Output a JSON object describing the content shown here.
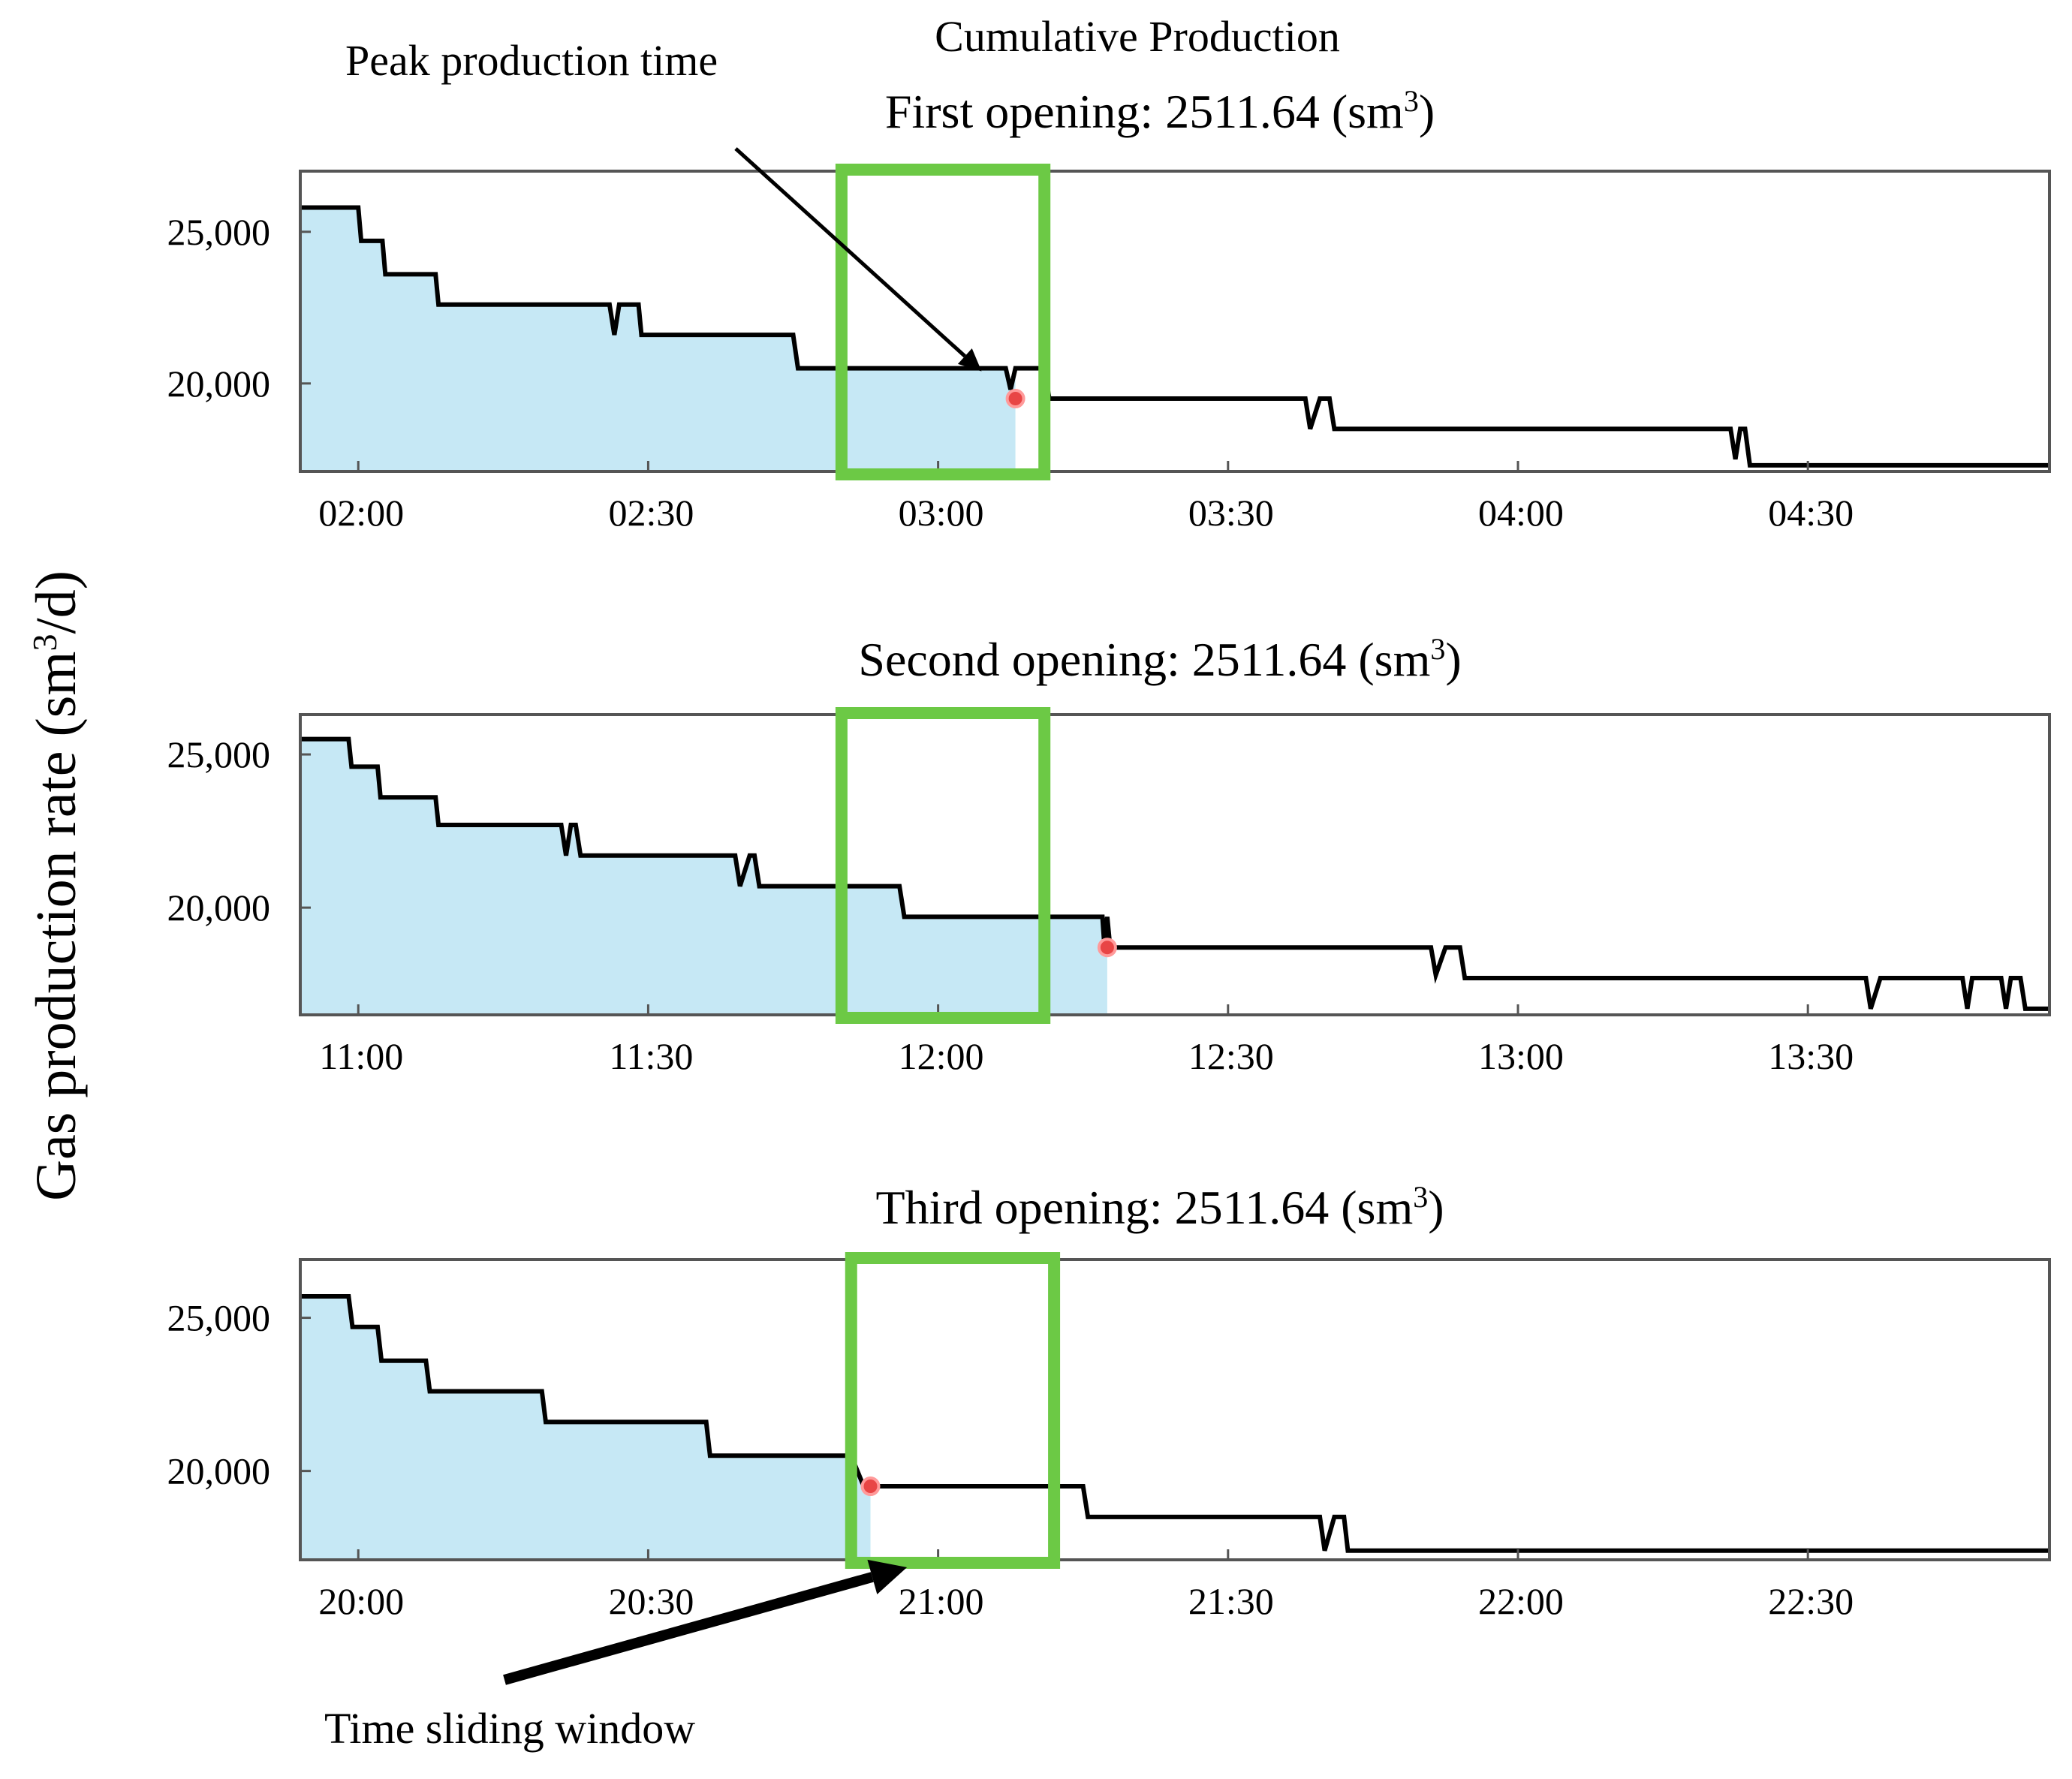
{
  "chart_data": [
    {
      "type": "line",
      "title": "First opening: 2511.64 (sm³)",
      "title_prefix": "First opening: 2511.64 (sm",
      "title_sup": "3",
      "title_suffix": ")",
      "header": "Cumulative Production",
      "ylabel": "Gas production rate (sm³/d)",
      "x_tick_labels": [
        "02:00",
        "02:30",
        "03:00",
        "03:30",
        "04:00",
        "04:30"
      ],
      "x_tick_values": [
        120,
        150,
        180,
        210,
        240,
        270
      ],
      "xlim": [
        114,
        295
      ],
      "y_tick_labels": [
        "25,000",
        "20,000"
      ],
      "y_tick_values": [
        25000,
        20000
      ],
      "ylim": [
        17100,
        27000
      ],
      "series": [
        {
          "name": "gas production rate",
          "points": [
            [
              114,
              25800
            ],
            [
              120,
              25800
            ],
            [
              120.3,
              24700
            ],
            [
              122.5,
              24700
            ],
            [
              122.8,
              23600
            ],
            [
              128,
              23600
            ],
            [
              128.3,
              22600
            ],
            [
              146,
              22600
            ],
            [
              146.5,
              21600
            ],
            [
              147,
              22600
            ],
            [
              149,
              22600
            ],
            [
              149.3,
              21600
            ],
            [
              165,
              21600
            ],
            [
              165.5,
              20500
            ],
            [
              187,
              20500
            ],
            [
              187.5,
              19800
            ],
            [
              188,
              20500
            ],
            [
              191,
              20500
            ],
            [
              191.5,
              19500
            ],
            [
              218,
              19500
            ],
            [
              218.5,
              18500
            ],
            [
              219.5,
              19500
            ],
            [
              220.5,
              19500
            ],
            [
              221,
              18500
            ],
            [
              262,
              18500
            ],
            [
              262.5,
              17500
            ],
            [
              263,
              18500
            ],
            [
              263.5,
              18500
            ],
            [
              264,
              17300
            ],
            [
              295,
              17300
            ]
          ]
        }
      ],
      "fill_until": 188,
      "window": [
        170,
        191
      ],
      "marker": {
        "x": 188,
        "y": 19500
      },
      "peak_arrow_target": {
        "x": 184.5,
        "y": 20400
      },
      "annotations": [
        "Peak production time"
      ]
    },
    {
      "type": "line",
      "title": "Second opening: 2511.64 (sm³)",
      "title_prefix": "Second opening: 2511.64 (sm",
      "title_sup": "3",
      "title_suffix": ")",
      "x_tick_labels": [
        "11:00",
        "11:30",
        "12:00",
        "12:30",
        "13:00",
        "13:30"
      ],
      "x_tick_values": [
        660,
        690,
        720,
        750,
        780,
        810
      ],
      "xlim": [
        654,
        835
      ],
      "y_tick_labels": [
        "25,000",
        "20,000"
      ],
      "y_tick_values": [
        25000,
        20000
      ],
      "ylim": [
        16500,
        26300
      ],
      "series": [
        {
          "name": "gas production rate",
          "points": [
            [
              654,
              25500
            ],
            [
              659,
              25500
            ],
            [
              659.3,
              24600
            ],
            [
              662,
              24600
            ],
            [
              662.3,
              23600
            ],
            [
              668,
              23600
            ],
            [
              668.3,
              22700
            ],
            [
              681,
              22700
            ],
            [
              681.5,
              21700
            ],
            [
              682,
              22700
            ],
            [
              682.5,
              22700
            ],
            [
              683,
              21700
            ],
            [
              699,
              21700
            ],
            [
              699.5,
              20700
            ],
            [
              700.5,
              21700
            ],
            [
              701,
              21700
            ],
            [
              701.5,
              20700
            ],
            [
              716,
              20700
            ],
            [
              716.5,
              19700
            ],
            [
              737,
              19700
            ],
            [
              737.2,
              18800
            ],
            [
              737.5,
              19700
            ],
            [
              737.8,
              18700
            ],
            [
              771,
              18700
            ],
            [
              771.5,
              17800
            ],
            [
              772.5,
              18700
            ],
            [
              774,
              18700
            ],
            [
              774.5,
              17700
            ],
            [
              816,
              17700
            ],
            [
              816.5,
              16700
            ],
            [
              817.5,
              17700
            ],
            [
              826,
              17700
            ],
            [
              826.5,
              16700
            ],
            [
              827,
              17700
            ],
            [
              830,
              17700
            ],
            [
              830.5,
              16700
            ],
            [
              831,
              17700
            ],
            [
              832,
              17700
            ],
            [
              832.5,
              16700
            ],
            [
              835,
              16700
            ]
          ]
        }
      ],
      "fill_until": 737.5,
      "window": [
        710,
        731
      ],
      "marker": {
        "x": 737.5,
        "y": 18700
      }
    },
    {
      "type": "line",
      "title": "Third opening: 2511.64 (sm³)",
      "title_prefix": "Third opening: 2511.64 (sm",
      "title_sup": "3",
      "title_suffix": ")",
      "x_tick_labels": [
        "20:00",
        "20:30",
        "21:00",
        "21:30",
        "22:00",
        "22:30"
      ],
      "x_tick_values": [
        1200,
        1230,
        1260,
        1290,
        1320,
        1350
      ],
      "xlim": [
        1194,
        1375
      ],
      "y_tick_labels": [
        "25,000",
        "20,000"
      ],
      "y_tick_values": [
        25000,
        20000
      ],
      "ylim": [
        17100,
        26900
      ],
      "series": [
        {
          "name": "gas production rate",
          "points": [
            [
              1194,
              25700
            ],
            [
              1199,
              25700
            ],
            [
              1199.4,
              24700
            ],
            [
              1202,
              24700
            ],
            [
              1202.4,
              23600
            ],
            [
              1207,
              23600
            ],
            [
              1207.4,
              22600
            ],
            [
              1219,
              22600
            ],
            [
              1219.4,
              21600
            ],
            [
              1236,
              21600
            ],
            [
              1236.4,
              20500
            ],
            [
              1251,
              20500
            ],
            [
              1252.3,
              19500
            ],
            [
              1275,
              19500
            ],
            [
              1275.5,
              18500
            ],
            [
              1299.5,
              18500
            ],
            [
              1300,
              17400
            ],
            [
              1301,
              18500
            ],
            [
              1302,
              18500
            ],
            [
              1302.4,
              17400
            ],
            [
              1375,
              17400
            ]
          ]
        }
      ],
      "fill_until": 1253,
      "window": [
        1251,
        1272
      ],
      "marker": {
        "x": 1253,
        "y": 19500
      },
      "window_arrow_target": {
        "x": 1256,
        "y": 17100
      },
      "annotations": [
        "Time sliding window"
      ]
    }
  ],
  "labels": {
    "header": "Cumulative Production",
    "ylabel_prefix": "Gas production rate (sm",
    "ylabel_sup": "3",
    "ylabel_suffix": "/d)",
    "peak_annotation": "Peak production time",
    "window_annotation": "Time sliding window"
  }
}
